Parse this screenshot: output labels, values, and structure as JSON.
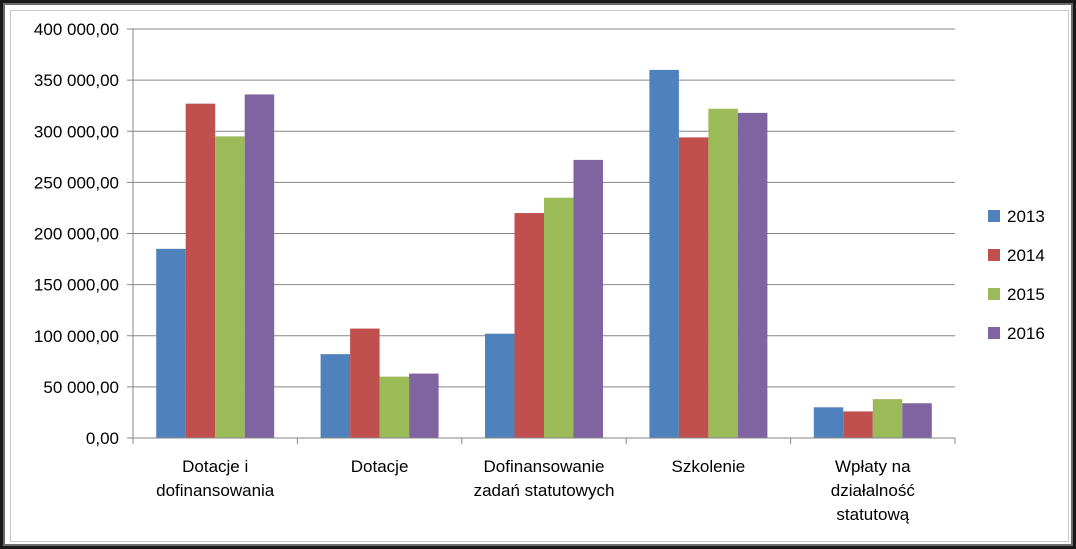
{
  "chart_data": {
    "type": "bar",
    "title": "",
    "xlabel": "",
    "ylabel": "",
    "ylim": [
      0,
      400000
    ],
    "ytick_step": 50000,
    "ytick_labels": [
      "0,00",
      "50 000,00",
      "100 000,00",
      "150 000,00",
      "200 000,00",
      "250 000,00",
      "300 000,00",
      "350 000,00",
      "400 000,00"
    ],
    "grid": true,
    "legend_position": "right",
    "categories": [
      [
        "Dotacje i",
        "dofinansowania"
      ],
      [
        "Dotacje"
      ],
      [
        "Dofinansowanie",
        "zadań statutowych"
      ],
      [
        "Szkolenie"
      ],
      [
        "Wpłaty na",
        "działalność",
        "statutową"
      ]
    ],
    "series": [
      {
        "name": "2013",
        "color": "#4f81bd",
        "values": [
          185000,
          82000,
          102000,
          360000,
          30000
        ]
      },
      {
        "name": "2014",
        "color": "#c0504d",
        "values": [
          327000,
          107000,
          220000,
          294000,
          26000
        ]
      },
      {
        "name": "2015",
        "color": "#9bbb59",
        "values": [
          295000,
          60000,
          235000,
          322000,
          38000
        ]
      },
      {
        "name": "2016",
        "color": "#8064a2",
        "values": [
          336000,
          63000,
          272000,
          318000,
          34000
        ]
      }
    ]
  }
}
